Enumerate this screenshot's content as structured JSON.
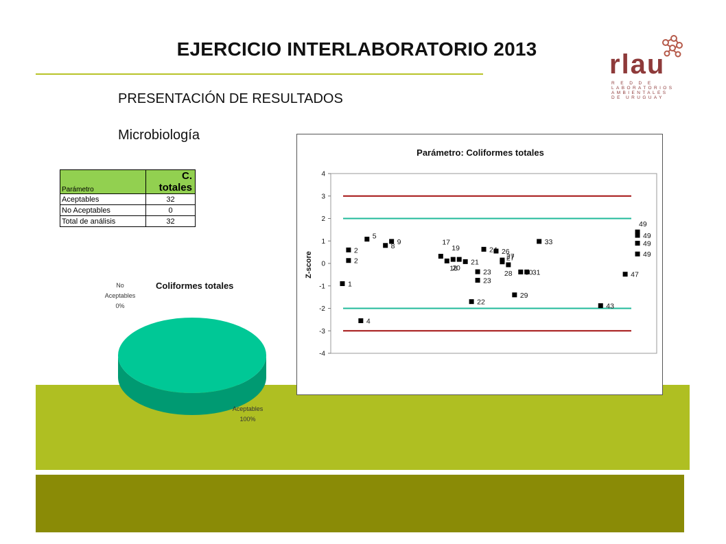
{
  "slide": {
    "title": "EJERCICIO INTERLABORATORIO 2013",
    "subtitle": "PRESENTACIÓN DE RESULTADOS",
    "section": "Microbiología"
  },
  "logo": {
    "word": "rlau",
    "sub_lines": [
      "R E D  D E",
      "LABORATORIOS",
      "AMBIENTALES",
      "DE URUGUAY"
    ]
  },
  "summary_table": {
    "header": {
      "label": "Parámetro",
      "value": "C. totales"
    },
    "rows": [
      {
        "label": "Aceptables",
        "value": "32"
      },
      {
        "label": "No Aceptables",
        "value": "0"
      },
      {
        "label": "Total de análisis",
        "value": "32"
      }
    ]
  },
  "pie_labels": {
    "title": "Coliformes totales",
    "no_acept_l1": "No",
    "no_acept_l2": "Aceptables",
    "no_acept_pct": "0%",
    "acept_l1": "Aceptables",
    "acept_pct": "100%"
  },
  "colors": {
    "pie_fill": "#00c896",
    "band_light": "#afbf22",
    "band_dark": "#8a8b06",
    "limit_red": "#a31010",
    "limit_teal": "#1fb99a",
    "marker": "#000000"
  },
  "chart_data": [
    {
      "type": "pie",
      "title": "Coliformes totales",
      "series": [
        {
          "name": "No Aceptables",
          "value": 0,
          "percent_label": "0%"
        },
        {
          "name": "Aceptables",
          "value": 32,
          "percent_label": "100%"
        }
      ],
      "style": "3d"
    },
    {
      "type": "scatter",
      "title": "Parámetro: Coliformes totales",
      "xlabel": "",
      "ylabel": "Z-score",
      "ylim": [
        -4,
        4
      ],
      "y_ticks": [
        "-4",
        "-3",
        "-2",
        "-1",
        "0",
        "1",
        "2",
        "3",
        "4"
      ],
      "x_range": [
        0,
        50
      ],
      "reference_lines": [
        {
          "y": 3,
          "color": "#a31010"
        },
        {
          "y": -3,
          "color": "#a31010"
        },
        {
          "y": 2,
          "color": "#1fb99a"
        },
        {
          "y": -2,
          "color": "#1fb99a"
        }
      ],
      "points": [
        {
          "x": 1,
          "y": -0.9,
          "label": "1"
        },
        {
          "x": 2,
          "y": 0.6,
          "label": "2"
        },
        {
          "x": 2,
          "y": 0.13,
          "label": "2"
        },
        {
          "x": 4,
          "y": -2.55,
          "label": "4"
        },
        {
          "x": 5,
          "y": 1.08,
          "label": "5"
        },
        {
          "x": 8,
          "y": 0.8,
          "label": "8"
        },
        {
          "x": 9,
          "y": 0.98,
          "label": "9"
        },
        {
          "x": 17,
          "y": 0.32,
          "label": "17"
        },
        {
          "x": 18,
          "y": 0.11,
          "label": "18"
        },
        {
          "x": 19,
          "y": 0.18,
          "label": "19"
        },
        {
          "x": 20,
          "y": 0.18,
          "label": "20"
        },
        {
          "x": 21,
          "y": 0.08,
          "label": "21"
        },
        {
          "x": 22,
          "y": -1.7,
          "label": "22"
        },
        {
          "x": 23,
          "y": -0.37,
          "label": "23"
        },
        {
          "x": 23,
          "y": -0.75,
          "label": "23"
        },
        {
          "x": 24,
          "y": 0.63,
          "label": "24"
        },
        {
          "x": 26,
          "y": 0.55,
          "label": "26"
        },
        {
          "x": 27,
          "y": 0.07,
          "label": "27"
        },
        {
          "x": 27,
          "y": 0.15,
          "label": "27"
        },
        {
          "x": 28,
          "y": -0.06,
          "label": "28"
        },
        {
          "x": 29,
          "y": -1.4,
          "label": "29"
        },
        {
          "x": 30,
          "y": -0.38,
          "label": "30"
        },
        {
          "x": 31,
          "y": -0.38,
          "label": "31"
        },
        {
          "x": 33,
          "y": 0.98,
          "label": "33"
        },
        {
          "x": 43,
          "y": -1.88,
          "label": "43"
        },
        {
          "x": 47,
          "y": -0.48,
          "label": "47"
        },
        {
          "x": 49,
          "y": 1.4,
          "label": "49"
        },
        {
          "x": 49,
          "y": 1.25,
          "label": "49"
        },
        {
          "x": 49,
          "y": 0.9,
          "label": "49"
        },
        {
          "x": 49,
          "y": 0.42,
          "label": "49"
        }
      ],
      "grid": false,
      "legend": "none"
    }
  ]
}
